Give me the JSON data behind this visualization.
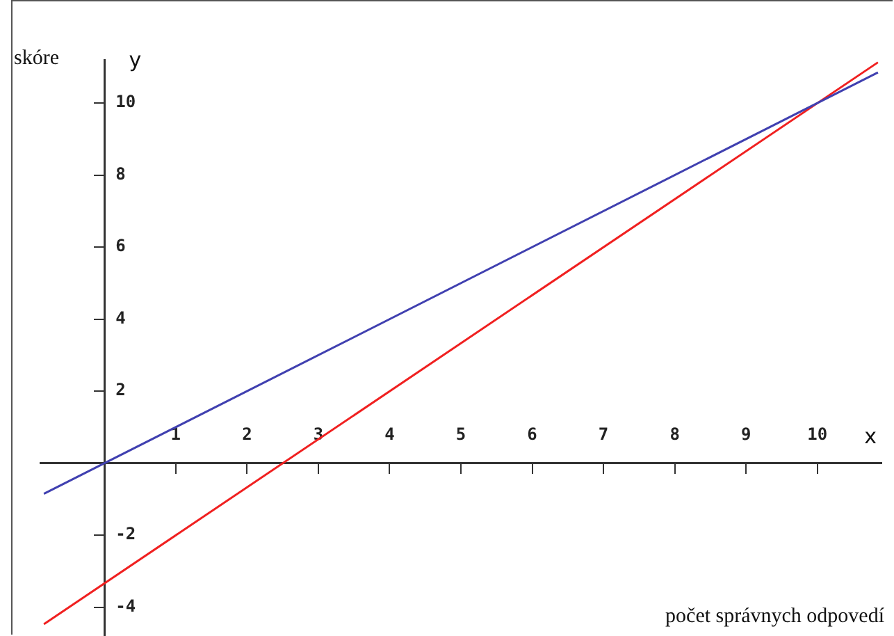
{
  "chart_data": {
    "type": "line",
    "xlabel": "počet správnych odpovedí",
    "ylabel": "skóre",
    "annotations": [
      "y",
      "x"
    ],
    "x": [
      -0.85,
      10.85
    ],
    "series": [
      {
        "color": "#4040b0",
        "values": [
          -0.85,
          10.85
        ]
      },
      {
        "color": "#f02020",
        "values": [
          -4.47,
          11.13
        ]
      }
    ],
    "xlim": [
      -0.9,
      10.9
    ],
    "ylim": [
      -4.8,
      11.2
    ],
    "xticks": [
      1,
      2,
      3,
      4,
      5,
      6,
      7,
      8,
      9,
      10
    ],
    "yticks": [
      -4,
      -2,
      2,
      4,
      6,
      8,
      10
    ],
    "grid": false,
    "legend": false,
    "marker": "none",
    "line_style": "solid"
  }
}
